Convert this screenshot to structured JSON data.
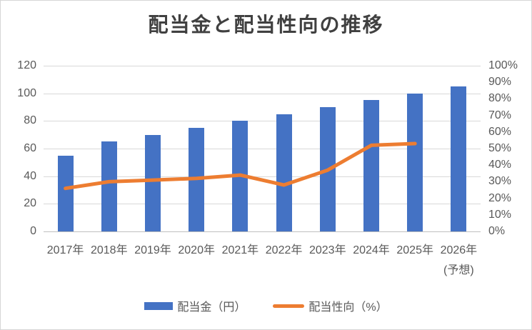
{
  "title": "配当金と配当性向の推移",
  "chart_data": {
    "type": "combo",
    "title": "配当金と配当性向の推移",
    "categories": [
      "2017年",
      "2018年",
      "2019年",
      "2020年",
      "2021年",
      "2022年",
      "2023年",
      "2024年",
      "2025年",
      "2026年"
    ],
    "last_category_note": "(予想)",
    "series": [
      {
        "name": "配当金（円）",
        "type": "bar",
        "axis": "left",
        "color": "#4472C4",
        "values": [
          55,
          65,
          70,
          75,
          80,
          85,
          90,
          95,
          100,
          105
        ]
      },
      {
        "name": "配当性向（%）",
        "type": "line",
        "axis": "right",
        "color": "#ED7D31",
        "values": [
          26,
          30,
          31,
          32,
          34,
          28,
          37,
          52,
          53,
          null
        ]
      }
    ],
    "left_axis": {
      "min": 0,
      "max": 120,
      "step": 20,
      "ticks": [
        "120",
        "100",
        "80",
        "60",
        "40",
        "20",
        "0"
      ]
    },
    "right_axis": {
      "min": 0,
      "max": 100,
      "step": 10,
      "ticks": [
        "100%",
        "90%",
        "80%",
        "70%",
        "60%",
        "50%",
        "40%",
        "30%",
        "20%",
        "10%",
        "0%"
      ]
    },
    "grid": true,
    "legend_position": "bottom"
  },
  "colors": {
    "bar": "#4472C4",
    "line": "#ED7D31",
    "gridline": "#D9D9D9",
    "axis_line": "#BFBFBF",
    "tick_text": "#595959",
    "title_text": "#404040",
    "border": "#D6D6D6",
    "background": "#FFFFFF"
  }
}
